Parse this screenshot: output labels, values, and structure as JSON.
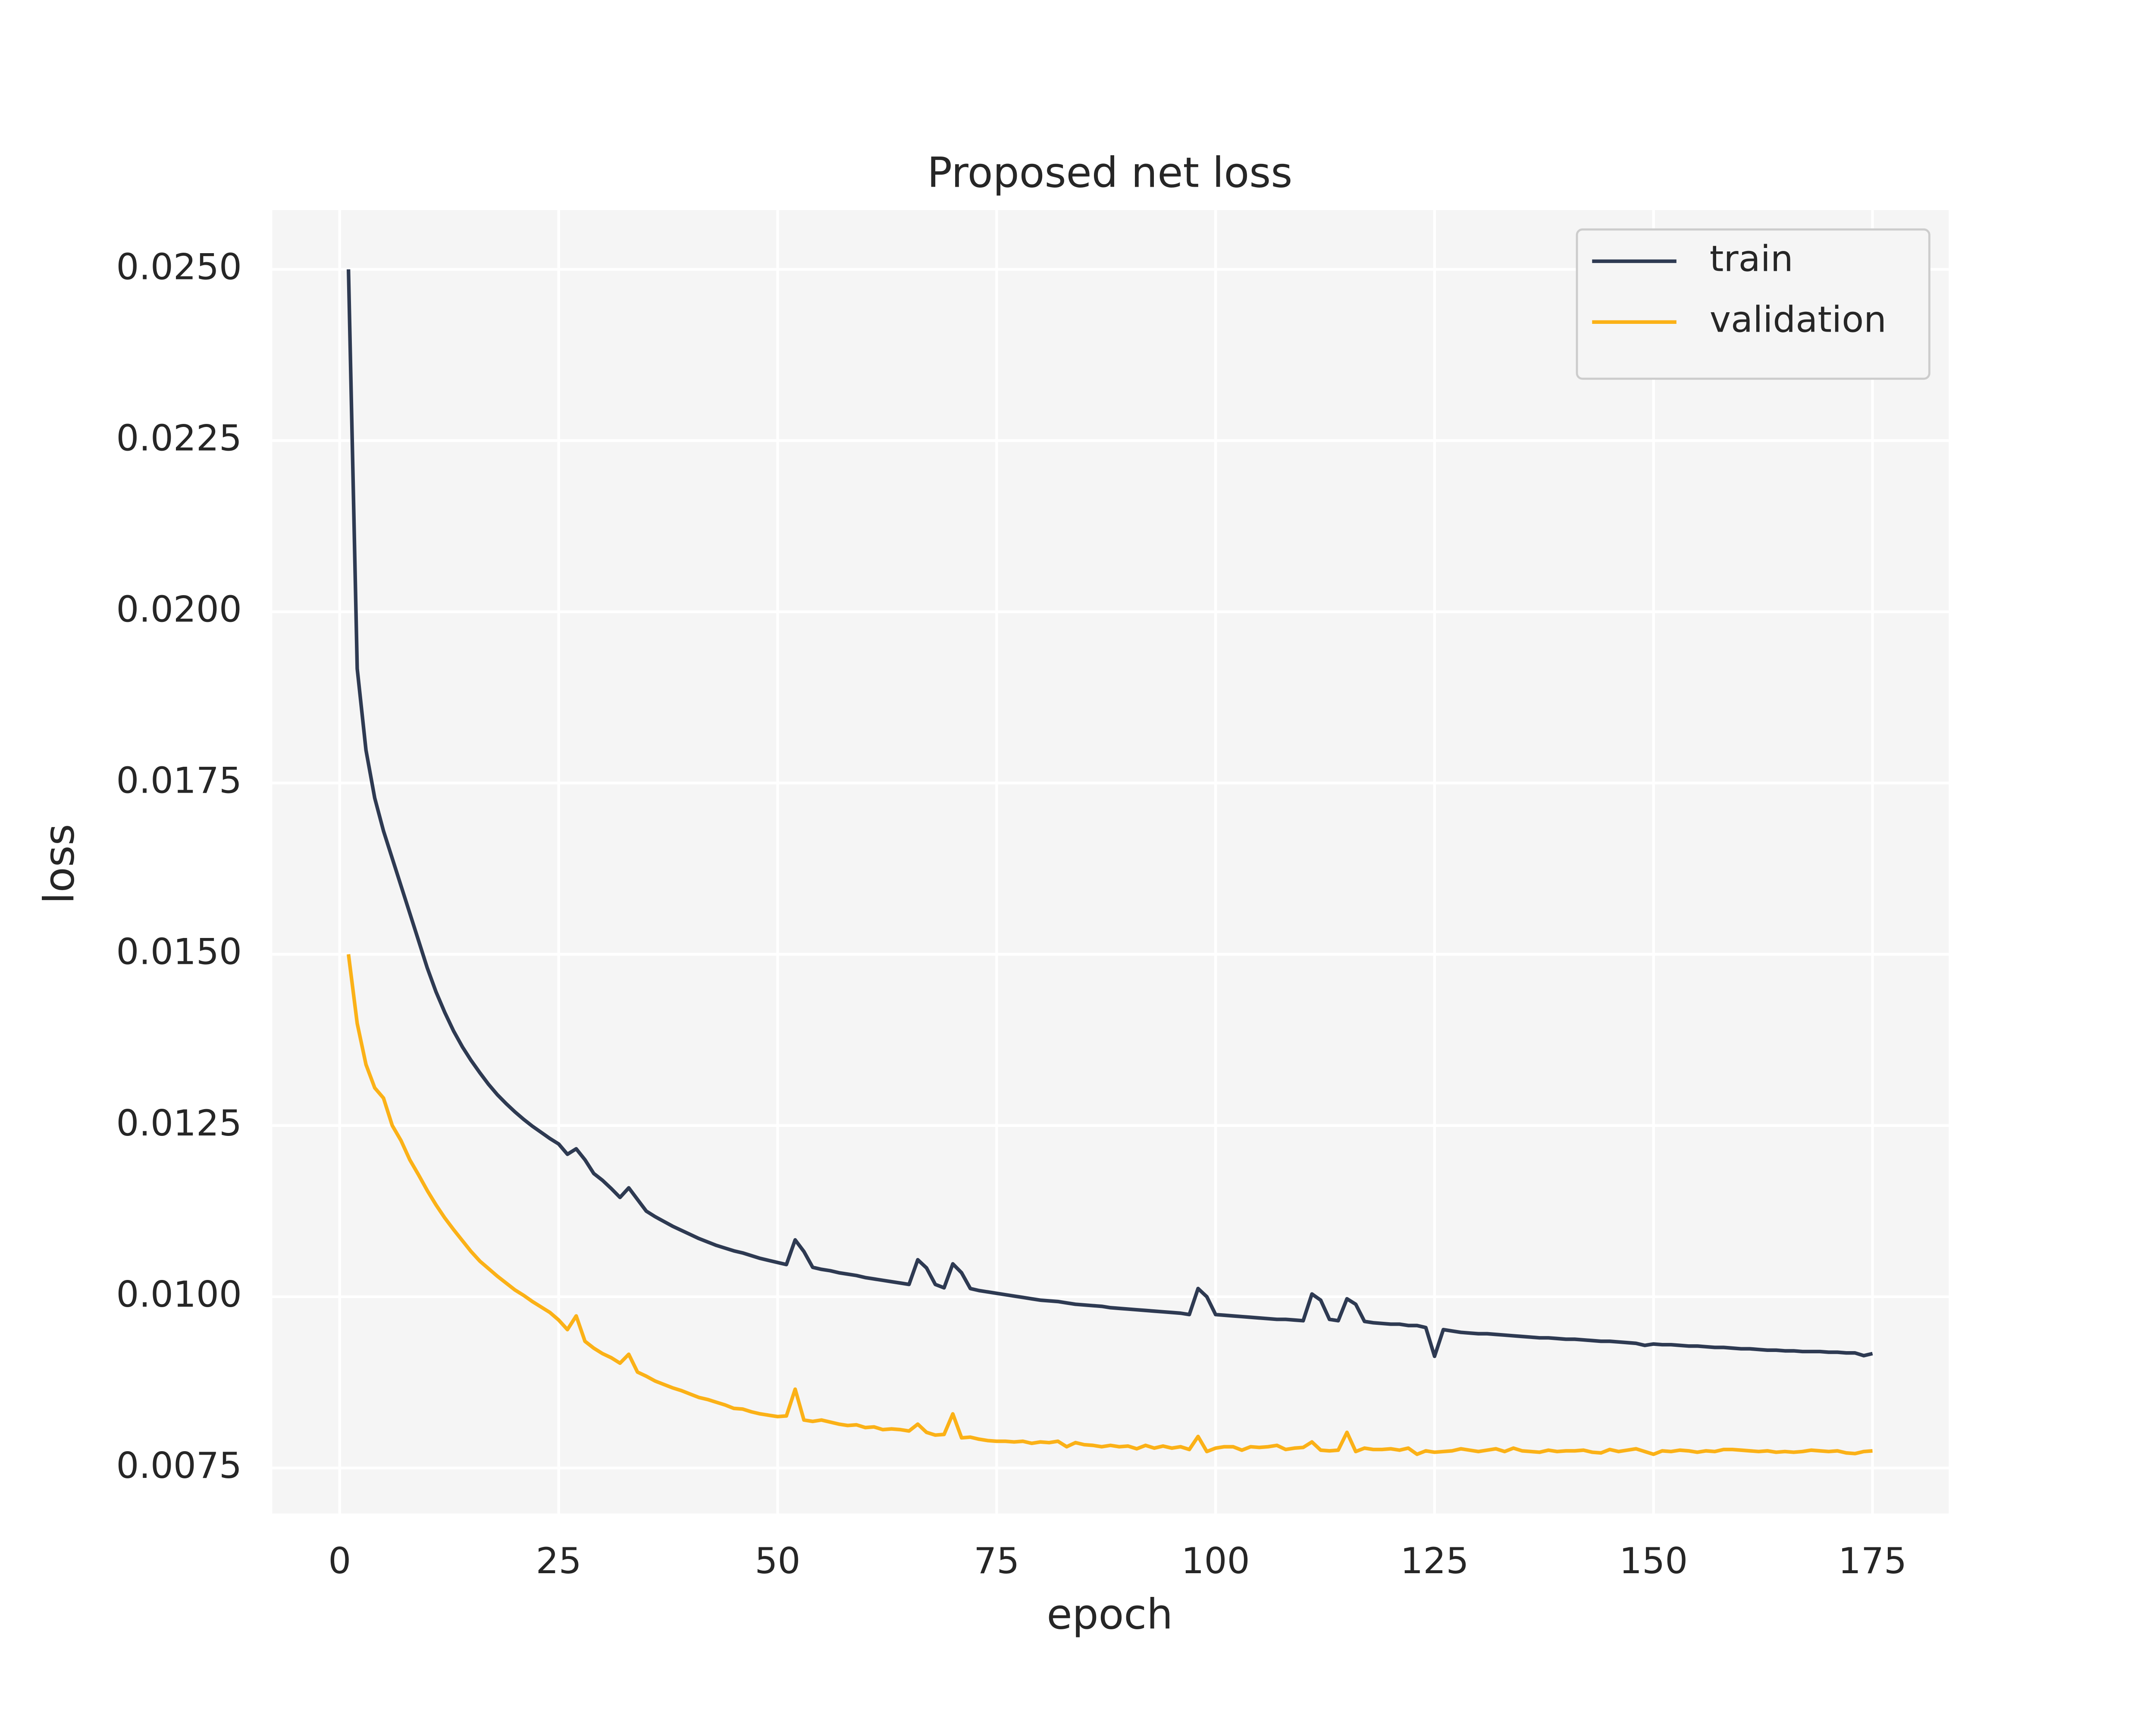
{
  "chart_data": {
    "type": "line",
    "title": "Proposed net loss",
    "xlabel": "epoch",
    "ylabel": "loss",
    "x": [
      1,
      2,
      3,
      4,
      5,
      6,
      7,
      8,
      9,
      10,
      11,
      12,
      13,
      14,
      15,
      16,
      17,
      18,
      19,
      20,
      21,
      22,
      23,
      24,
      25,
      26,
      27,
      28,
      29,
      30,
      31,
      32,
      33,
      34,
      35,
      36,
      37,
      38,
      39,
      40,
      41,
      42,
      43,
      44,
      45,
      46,
      47,
      48,
      49,
      50,
      51,
      52,
      53,
      54,
      55,
      56,
      57,
      58,
      59,
      60,
      61,
      62,
      63,
      64,
      65,
      66,
      67,
      68,
      69,
      70,
      71,
      72,
      73,
      74,
      75,
      76,
      77,
      78,
      79,
      80,
      81,
      82,
      83,
      84,
      85,
      86,
      87,
      88,
      89,
      90,
      91,
      92,
      93,
      94,
      95,
      96,
      97,
      98,
      99,
      100,
      101,
      102,
      103,
      104,
      105,
      106,
      107,
      108,
      109,
      110,
      111,
      112,
      113,
      114,
      115,
      116,
      117,
      118,
      119,
      120,
      121,
      122,
      123,
      124,
      125,
      126,
      127,
      128,
      129,
      130,
      131,
      132,
      133,
      134,
      135,
      136,
      137,
      138,
      139,
      140,
      141,
      142,
      143,
      144,
      145,
      146,
      147,
      148,
      149,
      150,
      151,
      152,
      153,
      154,
      155,
      156,
      157,
      158,
      159,
      160,
      161,
      162,
      163,
      164,
      165,
      166,
      167,
      168,
      169,
      170,
      171,
      172,
      173,
      174,
      175
    ],
    "series": [
      {
        "name": "train",
        "color": "#2e3a52",
        "values": [
          0.025,
          0.01917,
          0.01798,
          0.01728,
          0.0168,
          0.0164,
          0.016,
          0.0156,
          0.0152,
          0.0148,
          0.01445,
          0.01415,
          0.01388,
          0.01365,
          0.01345,
          0.01327,
          0.0131,
          0.01295,
          0.01282,
          0.0127,
          0.01259,
          0.01249,
          0.0124,
          0.01231,
          0.01223,
          0.01208,
          0.01216,
          0.012,
          0.0118,
          0.0117,
          0.01158,
          0.01145,
          0.01159,
          0.01142,
          0.01125,
          0.01117,
          0.0111,
          0.01103,
          0.01097,
          0.01091,
          0.01085,
          0.0108,
          0.01075,
          0.01071,
          0.01067,
          0.01064,
          0.0106,
          0.01056,
          0.01053,
          0.0105,
          0.01047,
          0.01083,
          0.01066,
          0.01043,
          0.0104,
          0.01038,
          0.01035,
          0.01033,
          0.01031,
          0.01028,
          0.01026,
          0.01024,
          0.01022,
          0.0102,
          0.01018,
          0.01054,
          0.01042,
          0.01018,
          0.01013,
          0.01048,
          0.01035,
          0.01012,
          0.01009,
          0.01007,
          0.01005,
          0.01003,
          0.01001,
          0.00999,
          0.00997,
          0.00995,
          0.00994,
          0.00993,
          0.00991,
          0.00989,
          0.00988,
          0.00987,
          0.00986,
          0.00984,
          0.00983,
          0.00982,
          0.00981,
          0.0098,
          0.00979,
          0.00978,
          0.00977,
          0.00976,
          0.00974,
          0.01012,
          0.01,
          0.00974,
          0.00973,
          0.00972,
          0.00971,
          0.0097,
          0.00969,
          0.00968,
          0.00967,
          0.00967,
          0.00966,
          0.00965,
          0.01004,
          0.00995,
          0.00967,
          0.00965,
          0.00997,
          0.00989,
          0.00964,
          0.00962,
          0.00961,
          0.0096,
          0.0096,
          0.00958,
          0.00958,
          0.00955,
          0.00913,
          0.00952,
          0.0095,
          0.00948,
          0.00947,
          0.00946,
          0.00946,
          0.00945,
          0.00944,
          0.00943,
          0.00942,
          0.00941,
          0.0094,
          0.0094,
          0.00939,
          0.00938,
          0.00938,
          0.00937,
          0.00936,
          0.00935,
          0.00935,
          0.00934,
          0.00933,
          0.00932,
          0.00929,
          0.00931,
          0.0093,
          0.0093,
          0.00929,
          0.00928,
          0.00928,
          0.00927,
          0.00926,
          0.00926,
          0.00925,
          0.00924,
          0.00924,
          0.00923,
          0.00922,
          0.00922,
          0.00921,
          0.00921,
          0.0092,
          0.0092,
          0.0092,
          0.00919,
          0.00919,
          0.00918,
          0.00918,
          0.00914,
          0.00917
        ]
      },
      {
        "name": "validation",
        "color": "#fbb117",
        "values": [
          0.015,
          0.01399,
          0.01339,
          0.01305,
          0.0129,
          0.0125,
          0.01228,
          0.012,
          0.01178,
          0.01155,
          0.01134,
          0.01115,
          0.01098,
          0.01082,
          0.01066,
          0.01052,
          0.01041,
          0.0103,
          0.0102,
          0.0101,
          0.01002,
          0.00993,
          0.00985,
          0.00977,
          0.00966,
          0.00952,
          0.00972,
          0.00935,
          0.00925,
          0.00917,
          0.00911,
          0.00903,
          0.00916,
          0.0089,
          0.00884,
          0.00877,
          0.00872,
          0.00867,
          0.00863,
          0.00858,
          0.00853,
          0.0085,
          0.00846,
          0.00842,
          0.00837,
          0.00836,
          0.00832,
          0.00829,
          0.00827,
          0.00825,
          0.00826,
          0.00865,
          0.0082,
          0.00818,
          0.0082,
          0.00817,
          0.00814,
          0.00812,
          0.00813,
          0.00809,
          0.0081,
          0.00806,
          0.00807,
          0.00806,
          0.00804,
          0.00814,
          0.00802,
          0.00798,
          0.00799,
          0.00829,
          0.00794,
          0.00795,
          0.00792,
          0.0079,
          0.00789,
          0.00789,
          0.00788,
          0.00789,
          0.00786,
          0.00788,
          0.00787,
          0.00789,
          0.00781,
          0.00787,
          0.00784,
          0.00783,
          0.00781,
          0.00783,
          0.00781,
          0.00782,
          0.00778,
          0.00783,
          0.00779,
          0.00782,
          0.00779,
          0.00781,
          0.00777,
          0.00796,
          0.00774,
          0.00779,
          0.00781,
          0.00781,
          0.00776,
          0.00781,
          0.0078,
          0.00781,
          0.00783,
          0.00777,
          0.00779,
          0.0078,
          0.00788,
          0.00776,
          0.00775,
          0.00776,
          0.00802,
          0.00774,
          0.00779,
          0.00777,
          0.00777,
          0.00778,
          0.00776,
          0.00779,
          0.0077,
          0.00775,
          0.00773,
          0.00774,
          0.00775,
          0.00778,
          0.00776,
          0.00774,
          0.00776,
          0.00778,
          0.00774,
          0.00779,
          0.00775,
          0.00774,
          0.00773,
          0.00776,
          0.00774,
          0.00775,
          0.00775,
          0.00776,
          0.00773,
          0.00772,
          0.00777,
          0.00774,
          0.00776,
          0.00778,
          0.00774,
          0.0077,
          0.00775,
          0.00774,
          0.00776,
          0.00775,
          0.00773,
          0.00775,
          0.00774,
          0.00777,
          0.00777,
          0.00776,
          0.00775,
          0.00774,
          0.00775,
          0.00773,
          0.00774,
          0.00773,
          0.00774,
          0.00776,
          0.00775,
          0.00774,
          0.00775,
          0.00772,
          0.00771,
          0.00774,
          0.00775
        ]
      }
    ],
    "xlim": [
      -7.7,
      183.7
    ],
    "xticks": [
      0,
      25,
      50,
      75,
      100,
      125,
      150,
      175
    ],
    "ylim": [
      0.006835,
      0.025865
    ],
    "yticks": [
      {
        "value": 0.0075,
        "label": "0.0075"
      },
      {
        "value": 0.01,
        "label": "0.0100"
      },
      {
        "value": 0.0125,
        "label": "0.0125"
      },
      {
        "value": 0.015,
        "label": "0.0150"
      },
      {
        "value": 0.0175,
        "label": "0.0175"
      },
      {
        "value": 0.02,
        "label": "0.0200"
      },
      {
        "value": 0.0225,
        "label": "0.0225"
      },
      {
        "value": 0.025,
        "label": "0.0250"
      }
    ],
    "grid": true,
    "legend": "upper right"
  }
}
